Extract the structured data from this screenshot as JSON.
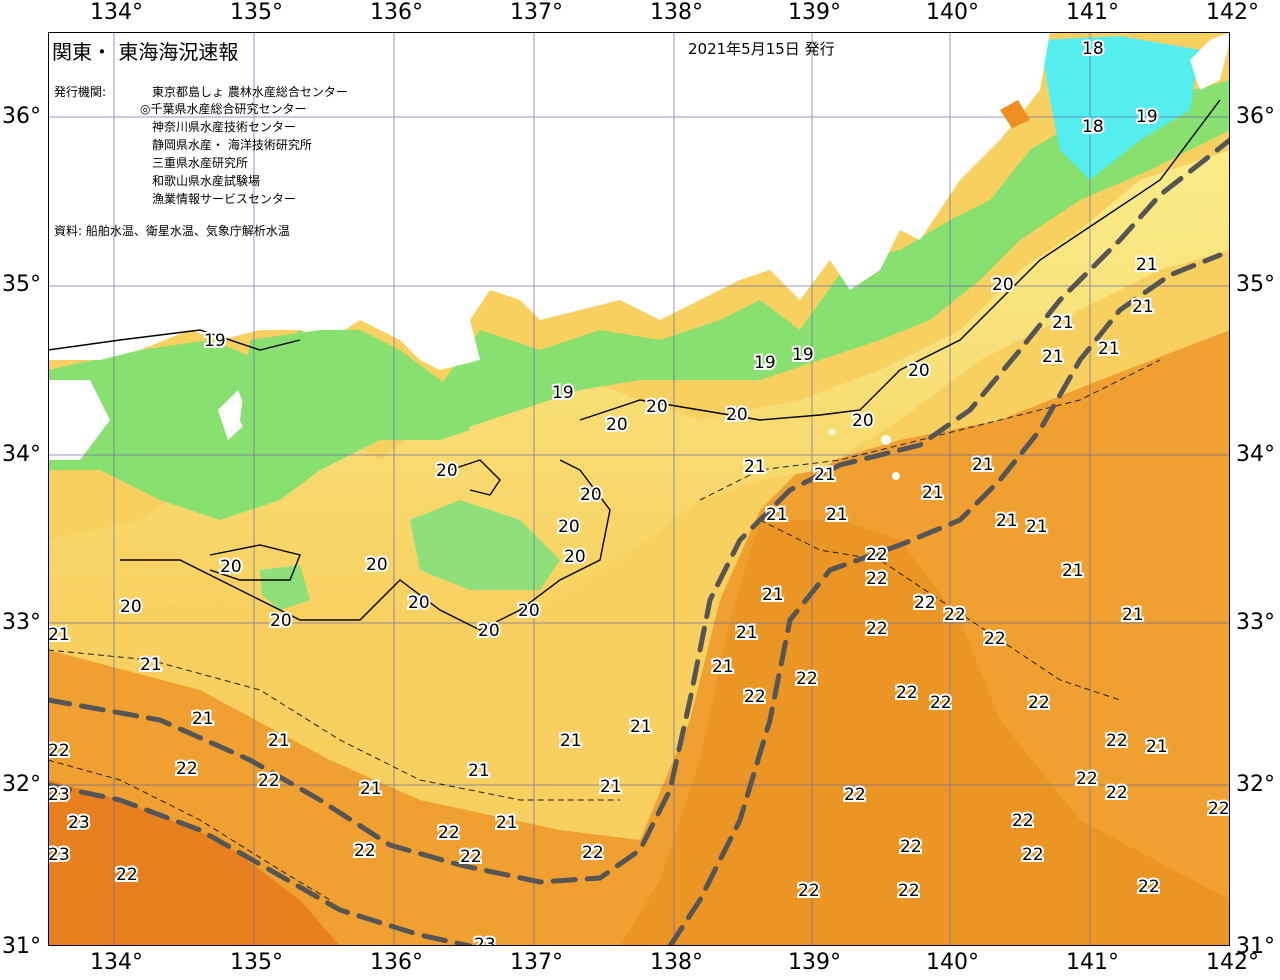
{
  "map": {
    "title": "関東・ 東海海況速報",
    "date": "2021年5月15日 発行",
    "issuer_label": "発行機関:",
    "organizations": [
      "東京都島しょ 農林水産総合センター",
      "◎千葉県水産総合研究センター",
      "神奈川県水産技術センター",
      "静岡県水産・ 海洋技術研究所",
      "三重県水産研究所",
      "和歌山県水産試験場",
      "漁業情報サービスセンター"
    ],
    "source": "資料: 船舶水温、衛星水温、気象庁解析水温",
    "longitude_labels": [
      "134°",
      "135°",
      "136°",
      "137°",
      "138°",
      "139°",
      "140°",
      "141°",
      "142°"
    ],
    "latitude_labels": [
      "36°",
      "35°",
      "34°",
      "33°",
      "32°",
      "31°"
    ],
    "isotherm_labels": [
      "18",
      "18",
      "19",
      "19",
      "19",
      "19",
      "19",
      "20",
      "20",
      "20",
      "20",
      "20",
      "20",
      "20",
      "20",
      "20",
      "20",
      "20",
      "20",
      "20",
      "20",
      "20",
      "20",
      "20",
      "21",
      "21",
      "21",
      "21",
      "21",
      "21",
      "21",
      "21",
      "21",
      "21",
      "21",
      "21",
      "21",
      "21",
      "21",
      "21",
      "21",
      "21",
      "21",
      "21",
      "21",
      "21",
      "21",
      "21",
      "21",
      "21",
      "21",
      "21",
      "21",
      "22",
      "22",
      "22",
      "22",
      "22",
      "22",
      "22",
      "22",
      "22",
      "22",
      "22",
      "22",
      "22",
      "22",
      "22",
      "22",
      "22",
      "22",
      "22",
      "22",
      "22",
      "22",
      "22",
      "22",
      "22",
      "22",
      "22",
      "22",
      "22",
      "22",
      "23",
      "23",
      "23",
      "23"
    ],
    "colors": {
      "water_18": "#55eeee",
      "water_19": "#88e070",
      "water_20": "#f8f090",
      "water_21": "#f8d060",
      "water_22": "#f0a030",
      "water_23": "#e88020",
      "land": "#ffffff",
      "grid": "#6a6aa8",
      "current_axis": "#555555"
    }
  }
}
